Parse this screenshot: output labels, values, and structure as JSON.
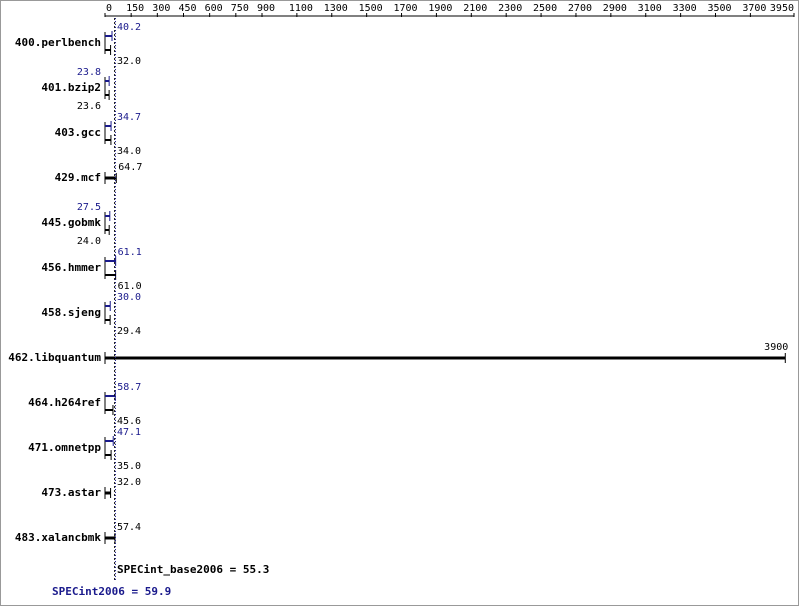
{
  "chart_data": {
    "type": "bar",
    "categories": [
      "400.perlbench",
      "401.bzip2",
      "403.gcc",
      "429.mcf",
      "445.gobmk",
      "456.hmmer",
      "458.sjeng",
      "462.libquantum",
      "464.h264ref",
      "471.omnetpp",
      "473.astar",
      "483.xalancbmk"
    ],
    "series": [
      {
        "color": "#1a1a8c",
        "values": [
          40.2,
          23.8,
          34.7,
          null,
          27.5,
          61.1,
          30.0,
          null,
          58.7,
          47.1,
          null,
          null
        ],
        "value_labels": [
          "40.2",
          "23.8",
          "34.7",
          null,
          "27.5",
          "61.1",
          "30.0",
          null,
          "58.7",
          "47.1",
          null,
          null
        ]
      },
      {
        "color": "#000000",
        "values": [
          32.0,
          23.6,
          34.0,
          64.7,
          24.0,
          61.0,
          29.4,
          3900,
          45.6,
          35.0,
          32.0,
          57.4
        ],
        "value_labels": [
          "32.0",
          "23.6",
          "34.0",
          "64.7",
          "24.0",
          "61.0",
          "29.4",
          "3900",
          "45.6",
          "35.0",
          "32.0",
          "57.4"
        ]
      }
    ],
    "xlim": [
      0,
      3950
    ],
    "xticks": [
      0,
      150,
      300,
      450,
      600,
      750,
      900,
      1100,
      1300,
      1500,
      1700,
      1900,
      2100,
      2300,
      2500,
      2700,
      2900,
      3100,
      3300,
      3500,
      3700,
      3950
    ],
    "base_mean": 55.3,
    "base_mean_label": "SPECint_base2006 = 55.3",
    "peak_mean": 59.9,
    "peak_mean_label": "SPECint2006 = 59.9"
  }
}
